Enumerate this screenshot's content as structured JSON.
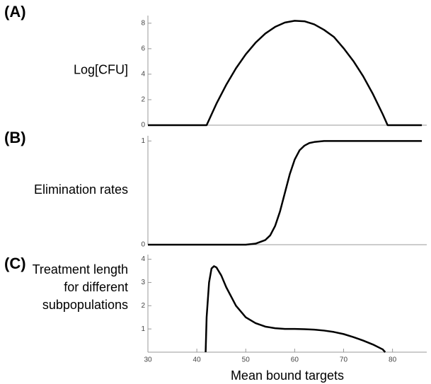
{
  "chart_data": [
    {
      "type": "line",
      "panel_label": "(A)",
      "ylabel": [
        "Log[CFU]"
      ],
      "color": "#000000",
      "x": [
        30,
        42,
        44,
        46,
        48,
        50,
        52,
        54,
        56,
        58,
        60,
        62,
        64,
        66,
        68,
        70,
        72,
        74,
        76,
        78,
        79,
        86
      ],
      "values": [
        0,
        0,
        1.68,
        3.16,
        4.46,
        5.56,
        6.47,
        7.19,
        7.71,
        8.05,
        8.19,
        8.15,
        7.91,
        7.48,
        6.93,
        6.04,
        5.03,
        3.84,
        2.44,
        0.86,
        0,
        0
      ],
      "xlim": [
        30,
        87
      ],
      "ylim": [
        0,
        8.6
      ],
      "yticks": [
        0,
        2,
        4,
        6,
        8
      ]
    },
    {
      "type": "line",
      "panel_label": "(B)",
      "ylabel": [
        "Elimination rates"
      ],
      "color": "#000000",
      "x": [
        30,
        50,
        52,
        54,
        55,
        56,
        57,
        58,
        59,
        60,
        61,
        62,
        63,
        64,
        66,
        70,
        86
      ],
      "values": [
        0,
        0,
        0.01,
        0.045,
        0.09,
        0.18,
        0.32,
        0.5,
        0.68,
        0.82,
        0.91,
        0.955,
        0.98,
        0.99,
        1,
        1,
        1
      ],
      "xlim": [
        30,
        87
      ],
      "ylim": [
        0,
        1.05
      ],
      "yticks": [
        0,
        1
      ]
    },
    {
      "type": "line",
      "panel_label": "(C)",
      "ylabel": [
        "Treatment length",
        "for different",
        "subpopulations"
      ],
      "color": "#000000",
      "x": [
        41.8,
        42,
        42.5,
        43,
        43.5,
        44,
        45,
        46,
        48,
        50,
        52,
        54,
        56,
        58,
        60,
        62,
        64,
        66,
        68,
        70,
        72,
        74,
        76,
        78,
        78.5
      ],
      "values": [
        0,
        1.5,
        3.0,
        3.6,
        3.7,
        3.65,
        3.3,
        2.8,
        2.0,
        1.5,
        1.25,
        1.1,
        1.03,
        1.0,
        1.0,
        0.99,
        0.97,
        0.93,
        0.87,
        0.78,
        0.65,
        0.5,
        0.33,
        0.12,
        0
      ],
      "xlim": [
        30,
        87
      ],
      "ylim": [
        0,
        4.2
      ],
      "yticks": [
        1,
        2,
        3,
        4
      ],
      "xticks": [
        30,
        40,
        50,
        60,
        70,
        80
      ],
      "xlabel": "Mean bound targets"
    }
  ]
}
